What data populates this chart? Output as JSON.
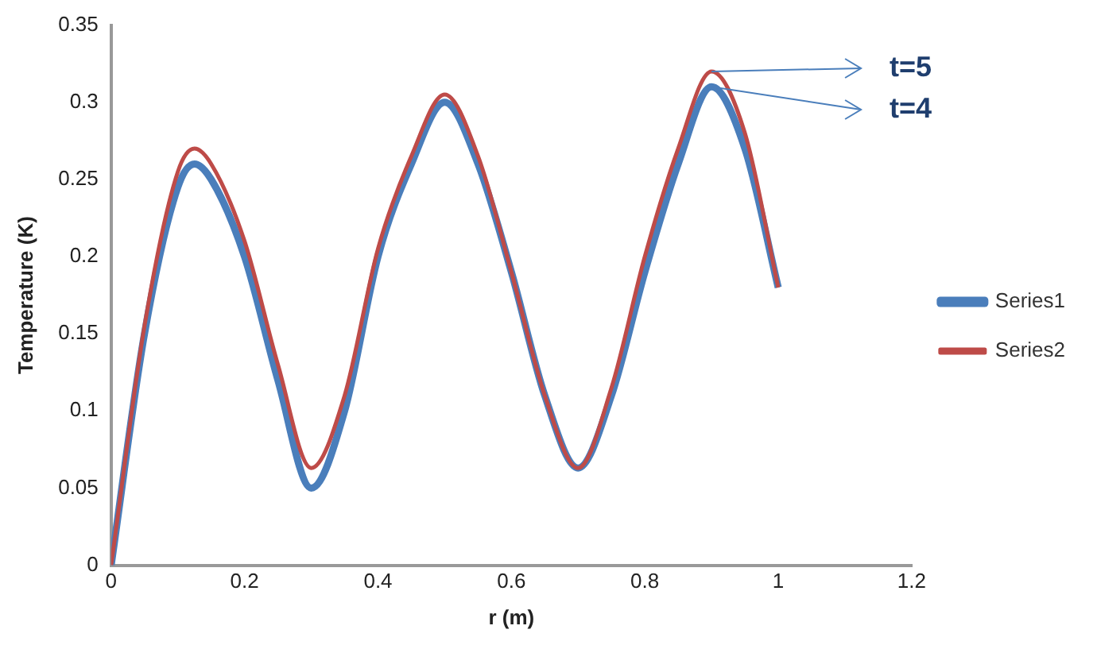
{
  "chart_data": {
    "type": "line",
    "xlabel": "r (m)",
    "ylabel": "Temperature (K)",
    "x": [
      0,
      0.05,
      0.1,
      0.125,
      0.15,
      0.2,
      0.25,
      0.3,
      0.35,
      0.4,
      0.45,
      0.5,
      0.55,
      0.6,
      0.65,
      0.7,
      0.75,
      0.8,
      0.85,
      0.9,
      0.95,
      1.0
    ],
    "series": [
      {
        "name": "Series1",
        "color": "#4a7ebb",
        "values": [
          0,
          0.15,
          0.245,
          0.26,
          0.25,
          0.2,
          0.12,
          0.05,
          0.1,
          0.2,
          0.26,
          0.3,
          0.26,
          0.19,
          0.11,
          0.063,
          0.11,
          0.19,
          0.26,
          0.31,
          0.27,
          0.18
        ]
      },
      {
        "name": "Series2",
        "color": "#be4b48",
        "values": [
          0,
          0.155,
          0.255,
          0.27,
          0.26,
          0.21,
          0.13,
          0.063,
          0.11,
          0.205,
          0.265,
          0.305,
          0.265,
          0.19,
          0.11,
          0.063,
          0.115,
          0.2,
          0.27,
          0.32,
          0.28,
          0.18
        ]
      }
    ],
    "xlim": [
      0,
      1.2
    ],
    "xticks": [
      0,
      0.2,
      0.4,
      0.6,
      0.8,
      1,
      1.2
    ],
    "ylim": [
      0,
      0.35
    ],
    "yticks": [
      0,
      0.05,
      0.1,
      0.15,
      0.2,
      0.25,
      0.3,
      0.35
    ],
    "grid": false,
    "legend": "right",
    "marker": "none",
    "line_style": "solid",
    "annotations": [
      {
        "text": "t=5",
        "x": 0.9,
        "y": 0.32
      },
      {
        "text": "t=4",
        "x": 0.9,
        "y": 0.31
      }
    ]
  }
}
